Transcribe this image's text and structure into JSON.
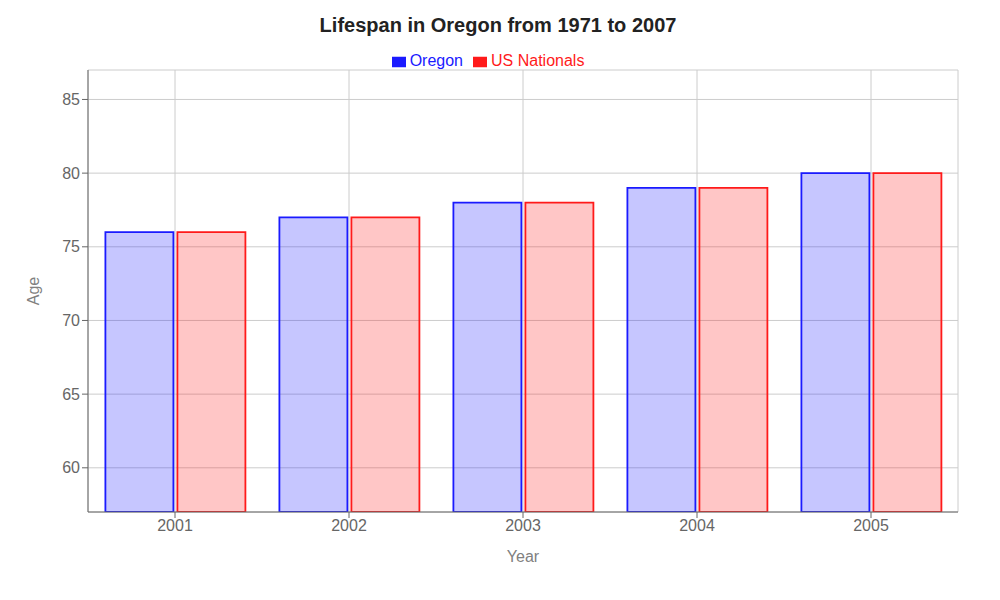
{
  "chart_data": {
    "type": "bar",
    "title": "Lifespan in Oregon from 1971 to 2007",
    "x_label": "Year",
    "y_label": "Age",
    "categories": [
      "2001",
      "2002",
      "2003",
      "2004",
      "2005"
    ],
    "series": [
      {
        "name": "Oregon",
        "color": "#1a1aff",
        "values": [
          76,
          77,
          78,
          79,
          80
        ]
      },
      {
        "name": "US Nationals",
        "color": "#ff1a1a",
        "values": [
          76,
          77,
          78,
          79,
          80
        ]
      }
    ],
    "ylim": [
      57,
      87
    ],
    "yticks": [
      60,
      65,
      70,
      75,
      80,
      85
    ],
    "grid": true,
    "legend": "top"
  }
}
